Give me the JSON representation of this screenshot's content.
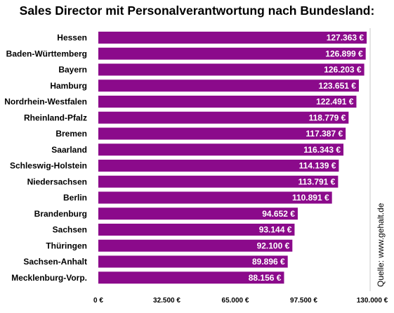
{
  "chart_data": {
    "type": "bar",
    "orientation": "horizontal",
    "title": "Sales Director mit Personalverantwortung nach Bundesland:",
    "categories": [
      "Hessen",
      "Baden-Württemberg",
      "Bayern",
      "Hamburg",
      "Nordrhein-Westfalen",
      "Rheinland-Pfalz",
      "Bremen",
      "Saarland",
      "Schleswig-Holstein",
      "Niedersachsen",
      "Berlin",
      "Brandenburg",
      "Sachsen",
      "Thüringen",
      "Sachsen-Anhalt",
      "Mecklenburg-Vorp."
    ],
    "values": [
      127363,
      126899,
      126203,
      123651,
      122491,
      118779,
      117387,
      116343,
      114139,
      113791,
      110891,
      94652,
      93144,
      92100,
      89896,
      88156
    ],
    "value_labels": [
      "127.363 €",
      "126.899 €",
      "126.203 €",
      "123.651 €",
      "122.491 €",
      "118.779 €",
      "117.387 €",
      "116.343 €",
      "114.139 €",
      "113.791 €",
      "110.891 €",
      "94.652 €",
      "93.144 €",
      "92.100 €",
      "89.896 €",
      "88.156 €"
    ],
    "xlim": [
      0,
      130000
    ],
    "ticks": [
      0,
      32500,
      65000,
      97500,
      130000
    ],
    "tick_labels": [
      "0 €",
      "32.500 €",
      "65.000 €",
      "97.500 €",
      "130.000 €"
    ],
    "grid": false,
    "source": "Quelle: www.gehalt.de",
    "colors": {
      "bar": "#8b0a8b",
      "value_text": "#ffffff",
      "axis_line": "#c8c8c8"
    }
  }
}
